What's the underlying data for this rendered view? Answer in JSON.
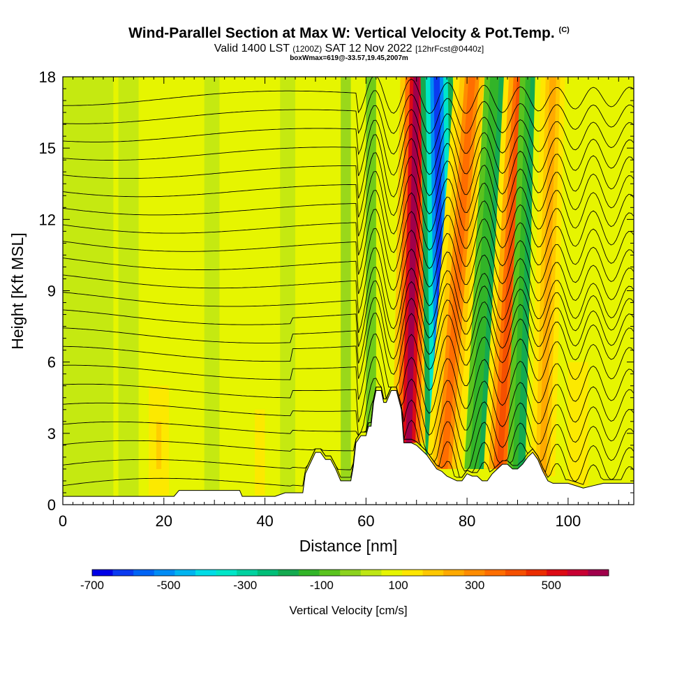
{
  "header": {
    "title": "Wind-Parallel Section at Max W: Vertical Velocity & Pot.Temp.",
    "copyright": "(C)",
    "valid_a": "Valid 1400 LST",
    "valid_z": "(1200Z)",
    "valid_b": "SAT 12 Nov 2022",
    "forecast": "[12hrFcst@0440z]",
    "box_info": "boxWmax=619@-33.57,19.45,2007m"
  },
  "chart_data": {
    "type": "heatmap",
    "title": "Wind-Parallel Section at Max W: Vertical Velocity & Pot.Temp.",
    "xlabel": "Distance [nm]",
    "ylabel": "Height [Kft MSL]",
    "xlim": [
      0,
      113
    ],
    "ylim": [
      0,
      18
    ],
    "x_ticks": [
      0,
      20,
      40,
      60,
      80,
      100
    ],
    "y_ticks": [
      0,
      3,
      6,
      9,
      12,
      15,
      18
    ],
    "colorbar": {
      "label": "Vertical Velocity [cm/s]",
      "range": [
        -700,
        650
      ],
      "tick_values": [
        -700,
        -500,
        -300,
        -100,
        100,
        300,
        500
      ],
      "tick_labels": [
        "-700",
        "-500",
        "-300",
        "-100",
        "100",
        "300",
        "500"
      ],
      "colors": [
        "#0000e6",
        "#0a3af0",
        "#0064f5",
        "#008cf5",
        "#00b4f0",
        "#00dce6",
        "#00e6c8",
        "#00d2a0",
        "#00be78",
        "#14aa50",
        "#32b428",
        "#5ac31e",
        "#8cd21e",
        "#bee614",
        "#e6f500",
        "#ffe600",
        "#ffc800",
        "#ffaa00",
        "#ff8c00",
        "#ff6e00",
        "#f55000",
        "#eb2d00",
        "#dc0a14",
        "#c80032",
        "#a0004b"
      ]
    },
    "terrain_kft": [
      [
        0,
        0.35
      ],
      [
        8,
        0.35
      ],
      [
        16,
        0.35
      ],
      [
        22,
        0.35
      ],
      [
        23,
        0.6
      ],
      [
        30,
        0.6
      ],
      [
        35,
        0.6
      ],
      [
        35.5,
        0.35
      ],
      [
        42,
        0.35
      ],
      [
        44,
        0.5
      ],
      [
        47.5,
        0.5
      ],
      [
        48,
        1.3
      ],
      [
        50,
        2.2
      ],
      [
        51,
        2.2
      ],
      [
        52,
        1.9
      ],
      [
        53,
        1.9
      ],
      [
        54,
        1.5
      ],
      [
        55,
        1.0
      ],
      [
        57,
        1.0
      ],
      [
        57.5,
        1.6
      ],
      [
        58,
        2.6
      ],
      [
        59,
        2.9
      ],
      [
        60,
        2.9
      ],
      [
        60.5,
        3.3
      ],
      [
        61,
        3.3
      ],
      [
        61.5,
        4.3
      ],
      [
        62,
        4.8
      ],
      [
        63,
        4.8
      ],
      [
        63.5,
        4.3
      ],
      [
        64,
        4.3
      ],
      [
        65,
        4.8
      ],
      [
        66,
        4.8
      ],
      [
        67,
        4.0
      ],
      [
        67.5,
        2.6
      ],
      [
        68,
        2.6
      ],
      [
        69,
        2.6
      ],
      [
        70,
        2.5
      ],
      [
        71,
        2.3
      ],
      [
        72,
        2.1
      ],
      [
        73,
        1.8
      ],
      [
        74,
        1.5
      ],
      [
        75,
        1.4
      ],
      [
        76,
        1.2
      ],
      [
        78,
        1.0
      ],
      [
        79,
        1.0
      ],
      [
        80,
        1.3
      ],
      [
        81,
        1.2
      ],
      [
        82,
        1.2
      ],
      [
        83,
        1.0
      ],
      [
        84,
        1.0
      ],
      [
        85,
        1.3
      ],
      [
        86,
        1.5
      ],
      [
        87,
        1.7
      ],
      [
        88,
        1.7
      ],
      [
        89,
        1.5
      ],
      [
        90,
        1.5
      ],
      [
        91,
        1.7
      ],
      [
        92,
        2.0
      ],
      [
        93,
        2.2
      ],
      [
        94,
        1.9
      ],
      [
        95,
        1.4
      ],
      [
        96,
        1.0
      ],
      [
        97,
        0.9
      ],
      [
        100,
        0.9
      ],
      [
        103,
        0.7
      ],
      [
        105,
        0.8
      ],
      [
        107,
        0.9
      ],
      [
        110,
        0.9
      ],
      [
        113,
        0.9
      ]
    ],
    "updraft_bands": [
      {
        "x_top": 70,
        "x_bottom": 68.5,
        "z_from": 2.6,
        "w_peak": 600
      },
      {
        "x_top": 74,
        "x_bottom": 75,
        "z_from": 2.0,
        "w_peak": -600
      },
      {
        "x_top": 81,
        "x_bottom": 75.5,
        "z_from": 1.5,
        "w_peak": 350
      },
      {
        "x_top": 87,
        "x_bottom": 83,
        "z_from": 1.5,
        "w_peak": -180
      },
      {
        "x_top": 90.5,
        "x_bottom": 86.5,
        "z_from": 1.5,
        "w_peak": 420
      },
      {
        "x_top": 94,
        "x_bottom": 91.5,
        "z_from": 1.5,
        "w_peak": -200
      },
      {
        "x_top": 97,
        "x_bottom": 95,
        "z_from": 1.2,
        "w_peak": 250
      }
    ],
    "isentrope_count": 22
  }
}
